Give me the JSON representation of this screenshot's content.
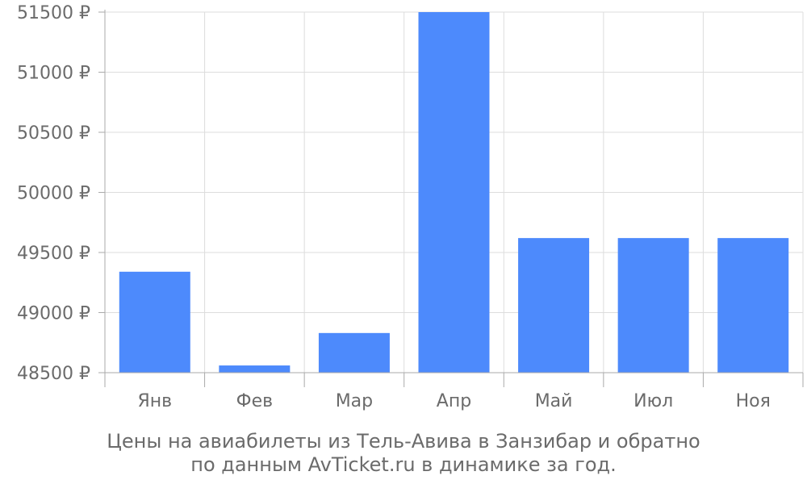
{
  "chart_data": {
    "type": "bar",
    "categories": [
      "Янв",
      "Фев",
      "Мар",
      "Апр",
      "Май",
      "Июл",
      "Ноя"
    ],
    "values": [
      49340,
      48560,
      48830,
      51500,
      49620,
      49620,
      49620
    ],
    "y_ticks": [
      48500,
      49000,
      49500,
      50000,
      50500,
      51000,
      51500
    ],
    "y_tick_labels": [
      "48500 ₽",
      "49000 ₽",
      "49500 ₽",
      "50000 ₽",
      "50500 ₽",
      "51000 ₽",
      "51500 ₽"
    ],
    "ylim": [
      48500,
      51500
    ],
    "grid": true,
    "bar_color": "#4d8afc",
    "caption_line1": "Цены на авиабилеты из Тель-Авива в Занзибар и обратно",
    "caption_line2": "по данным AvTicket.ru в динамике за год."
  }
}
